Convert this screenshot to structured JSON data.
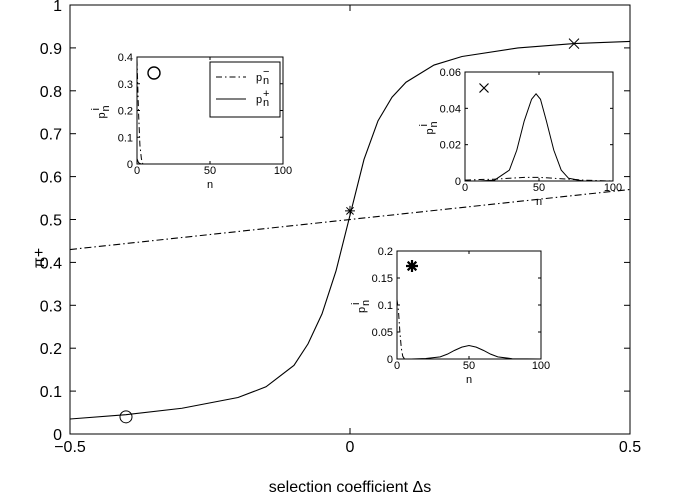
{
  "chart_data": [
    {
      "id": "main",
      "type": "line",
      "xlabel": "selection coefficient Δs",
      "ylabel": "π+",
      "xlim": [
        -0.5,
        0.5
      ],
      "ylim": [
        0,
        1
      ],
      "xticks": [
        -0.5,
        0,
        0.5
      ],
      "xtick_labels": [
        "−0.5",
        "0",
        "0.5"
      ],
      "yticks": [
        0,
        0.1,
        0.2,
        0.3,
        0.4,
        0.5,
        0.6,
        0.7,
        0.8,
        0.9,
        1
      ],
      "ytick_labels": [
        "0",
        "0.1",
        "0.2",
        "0.3",
        "0.4",
        "0.5",
        "0.6",
        "0.7",
        "0.8",
        "0.9",
        "1"
      ],
      "series": [
        {
          "style": "solid",
          "x": [
            -0.5,
            -0.4,
            -0.3,
            -0.2,
            -0.15,
            -0.1,
            -0.075,
            -0.05,
            -0.025,
            0,
            0.025,
            0.05,
            0.075,
            0.1,
            0.15,
            0.2,
            0.3,
            0.4,
            0.5
          ],
          "y": [
            0.035,
            0.045,
            0.06,
            0.085,
            0.11,
            0.16,
            0.21,
            0.28,
            0.38,
            0.51,
            0.64,
            0.73,
            0.785,
            0.82,
            0.86,
            0.88,
            0.9,
            0.91,
            0.915
          ]
        },
        {
          "style": "dashdot",
          "x": [
            -0.5,
            0.5
          ],
          "y": [
            0.43,
            0.57
          ]
        }
      ],
      "markers": [
        {
          "symbol": "circle",
          "x": -0.4,
          "y": 0.04
        },
        {
          "symbol": "asterisk",
          "x": 0,
          "y": 0.52
        },
        {
          "symbol": "cross",
          "x": 0.4,
          "y": 0.91
        }
      ]
    },
    {
      "id": "inset-circle",
      "type": "line",
      "xlabel": "n",
      "ylabel": "p",
      "ylabel_sub": "n",
      "ylabel_sup": "i",
      "xlim": [
        0,
        100
      ],
      "ylim": [
        0,
        0.4
      ],
      "xticks": [
        0,
        50,
        100
      ],
      "xtick_labels": [
        "0",
        "50",
        "100"
      ],
      "yticks": [
        0,
        0.1,
        0.2,
        0.3,
        0.4
      ],
      "ytick_labels": [
        "0",
        "0.1",
        "0.2",
        "0.3",
        "0.4"
      ],
      "marker": "circle",
      "legend": [
        {
          "style": "dashdot",
          "label": "p",
          "sub": "n",
          "sup": "−"
        },
        {
          "style": "solid",
          "label": "p",
          "sub": "n",
          "sup": "+"
        }
      ],
      "series": [
        {
          "style": "dashdot",
          "x": [
            0,
            1,
            2,
            3,
            4
          ],
          "y": [
            0.39,
            0.2,
            0.07,
            0.02,
            0
          ]
        },
        {
          "style": "solid",
          "x": [
            0,
            1,
            2,
            3,
            4
          ],
          "y": [
            0.02,
            0.005,
            0.002,
            0,
            0
          ]
        }
      ]
    },
    {
      "id": "inset-cross",
      "type": "line",
      "xlabel": "n",
      "ylabel": "p",
      "ylabel_sub": "n",
      "ylabel_sup": "i",
      "xlim": [
        0,
        100
      ],
      "ylim": [
        0,
        0.06
      ],
      "xticks": [
        0,
        50,
        100
      ],
      "xtick_labels": [
        "0",
        "50",
        "100"
      ],
      "yticks": [
        0,
        0.02,
        0.04,
        0.06
      ],
      "ytick_labels": [
        "0",
        "0.02",
        "0.04",
        "0.06"
      ],
      "marker": "cross",
      "series": [
        {
          "style": "solid",
          "x": [
            0,
            10,
            20,
            30,
            35,
            40,
            45,
            48,
            51,
            55,
            60,
            65,
            70,
            80,
            90,
            100
          ],
          "y": [
            0,
            0,
            0.0005,
            0.006,
            0.017,
            0.033,
            0.045,
            0.048,
            0.045,
            0.033,
            0.017,
            0.006,
            0.0015,
            0,
            0,
            0
          ]
        },
        {
          "style": "dashdot",
          "x": [
            0,
            10,
            20,
            30,
            40,
            50,
            60,
            70,
            80,
            90,
            100
          ],
          "y": [
            0.0005,
            0.0008,
            0.001,
            0.0015,
            0.002,
            0.002,
            0.0015,
            0.001,
            0.0005,
            0.0002,
            0
          ]
        }
      ]
    },
    {
      "id": "inset-asterisk",
      "type": "line",
      "xlabel": "n",
      "ylabel": "p",
      "ylabel_sub": "n",
      "ylabel_sup": "i",
      "xlim": [
        0,
        100
      ],
      "ylim": [
        0,
        0.2
      ],
      "xticks": [
        0,
        50,
        100
      ],
      "xtick_labels": [
        "0",
        "50",
        "100"
      ],
      "yticks": [
        0,
        0.05,
        0.1,
        0.15,
        0.2
      ],
      "ytick_labels": [
        "0",
        "0.05",
        "0.1",
        "0.15",
        "0.2"
      ],
      "marker": "asterisk",
      "series": [
        {
          "style": "dashdot",
          "x": [
            0,
            1,
            2,
            3,
            4,
            5,
            6
          ],
          "y": [
            0.11,
            0.09,
            0.05,
            0.02,
            0.005,
            0.001,
            0
          ]
        },
        {
          "style": "solid",
          "x": [
            0,
            10,
            20,
            30,
            35,
            40,
            45,
            50,
            55,
            60,
            65,
            70,
            80,
            100
          ],
          "y": [
            0,
            0,
            0.001,
            0.004,
            0.009,
            0.016,
            0.022,
            0.025,
            0.022,
            0.016,
            0.009,
            0.004,
            0.0005,
            0
          ]
        }
      ]
    }
  ]
}
